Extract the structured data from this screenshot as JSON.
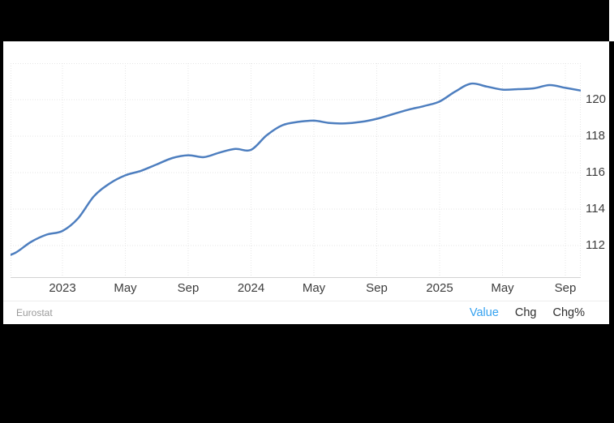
{
  "chart_data": {
    "type": "line",
    "title": "",
    "source": "Eurostat",
    "legend": "none",
    "grid": "dotted",
    "x": [
      "Sep 2022",
      "Oct 2022",
      "Nov 2022",
      "Dec 2022",
      "Jan 2023",
      "Feb 2023",
      "Mar 2023",
      "Apr 2023",
      "May 2023",
      "Jun 2023",
      "Jul 2023",
      "Aug 2023",
      "Sep 2023",
      "Oct 2023",
      "Nov 2023",
      "Dec 2023",
      "Jan 2024",
      "Feb 2024",
      "Mar 2024",
      "Apr 2024",
      "May 2024",
      "Jun 2024",
      "Jul 2024",
      "Aug 2024",
      "Sep 2024",
      "Oct 2024",
      "Nov 2024",
      "Dec 2024",
      "Jan 2025",
      "Feb 2025",
      "Mar 2025",
      "Apr 2025",
      "May 2025",
      "Jun 2025",
      "Jul 2025",
      "Aug 2025",
      "Sep 2025",
      "Oct 2025"
    ],
    "series": [
      {
        "name": "Value",
        "color": "#4d7ebf",
        "values": [
          111.3,
          111.6,
          112.2,
          112.6,
          112.8,
          113.5,
          114.7,
          115.4,
          115.85,
          116.1,
          116.45,
          116.8,
          116.95,
          116.85,
          117.1,
          117.3,
          117.25,
          118.05,
          118.6,
          118.78,
          118.85,
          118.72,
          118.7,
          118.78,
          118.95,
          119.2,
          119.45,
          119.65,
          119.9,
          120.45,
          120.88,
          120.72,
          120.55,
          120.58,
          120.62,
          120.8,
          120.65,
          120.5
        ]
      }
    ],
    "note": "first point (Sep 2022) is clipped by the left plot border",
    "ylim": [
      110.2,
      122.0
    ],
    "y_ticks": [
      {
        "label": "112",
        "value": 112
      },
      {
        "label": "114",
        "value": 114
      },
      {
        "label": "116",
        "value": 116
      },
      {
        "label": "118",
        "value": 118
      },
      {
        "label": "120",
        "value": 120
      }
    ],
    "y_axis_side": "right",
    "x_ticks": [
      {
        "label": "2023",
        "month_index": 4
      },
      {
        "label": "May",
        "month_index": 8
      },
      {
        "label": "Sep",
        "month_index": 12
      },
      {
        "label": "2024",
        "month_index": 16
      },
      {
        "label": "May",
        "month_index": 20
      },
      {
        "label": "Sep",
        "month_index": 24
      },
      {
        "label": "2025",
        "month_index": 28
      },
      {
        "label": "May",
        "month_index": 32
      },
      {
        "label": "Sep",
        "month_index": 36
      }
    ]
  },
  "footer": {
    "source_label": "Eurostat",
    "links": [
      {
        "label": "Value",
        "active": true
      },
      {
        "label": "Chg",
        "active": false
      },
      {
        "label": "Chg%",
        "active": false
      }
    ]
  },
  "colors": {
    "background": "#000000",
    "page": "#ffffff",
    "line": "#4d7ebf",
    "gridline": "#e6e6e6",
    "bottom_axis": "#d2d2d2",
    "axis_text": "#3d3d3d",
    "source_text": "#9a9a9a",
    "link_text": "#2f2f2f",
    "active_link": "#35a2f0"
  }
}
